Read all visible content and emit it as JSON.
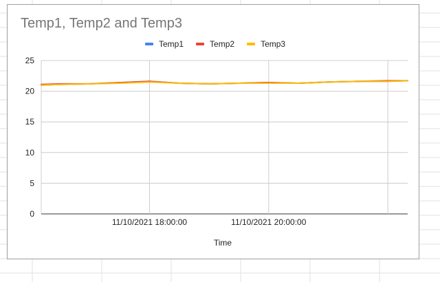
{
  "chart_data": {
    "type": "line",
    "title": "Temp1, Temp2 and Temp3",
    "xlabel": "Time",
    "ylabel": "",
    "ylim": [
      0,
      25
    ],
    "yticks": [
      0,
      5,
      10,
      15,
      20,
      25
    ],
    "xlim": [
      "11/10/2021 16:11:00",
      "11/10/2021 22:20:00"
    ],
    "xticks": [
      {
        "t": "11/10/2021 18:00:00",
        "label": "11/10/2021 18:00:00"
      },
      {
        "t": "11/10/2021 20:00:00",
        "label": "11/10/2021 20:00:00"
      },
      {
        "t": "11/10/2021 22:00:00",
        "label": ""
      }
    ],
    "grid": true,
    "legend_position": "top",
    "x": [
      "11/10/2021 16:11:00",
      "11/10/2021 16:30:00",
      "11/10/2021 17:00:00",
      "11/10/2021 17:30:00",
      "11/10/2021 18:00:00",
      "11/10/2021 18:30:00",
      "11/10/2021 19:00:00",
      "11/10/2021 19:30:00",
      "11/10/2021 20:00:00",
      "11/10/2021 20:30:00",
      "11/10/2021 21:00:00",
      "11/10/2021 21:30:00",
      "11/10/2021 22:00:00",
      "11/10/2021 22:20:00"
    ],
    "series": [
      {
        "name": "Temp1",
        "color": "#4285f4",
        "values": [
          21.0,
          21.1,
          21.2,
          21.4,
          21.6,
          21.3,
          21.2,
          21.3,
          21.4,
          21.3,
          21.5,
          21.6,
          21.6,
          21.7
        ]
      },
      {
        "name": "Temp2",
        "color": "#ea4335",
        "values": [
          21.1,
          21.2,
          21.2,
          21.4,
          21.6,
          21.3,
          21.2,
          21.3,
          21.4,
          21.3,
          21.5,
          21.6,
          21.7,
          21.7
        ]
      },
      {
        "name": "Temp3",
        "color": "#fbbc04",
        "values": [
          21.0,
          21.1,
          21.2,
          21.3,
          21.5,
          21.3,
          21.2,
          21.3,
          21.3,
          21.3,
          21.5,
          21.6,
          21.6,
          21.7
        ]
      }
    ]
  }
}
